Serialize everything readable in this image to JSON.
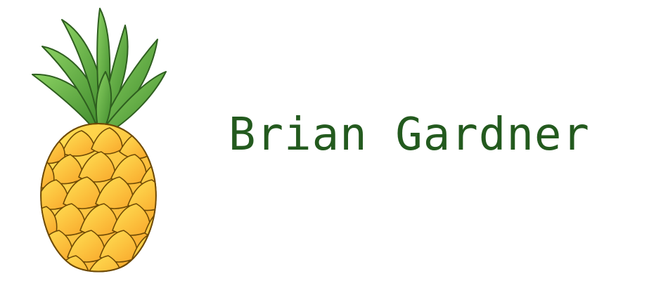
{
  "brand": {
    "name": "Brian Gardner",
    "text_color": "#235a1e",
    "logo_icon": "pineapple-icon"
  },
  "colors": {
    "leaf_light": "#8cd263",
    "leaf_dark": "#3f8a2c",
    "leaf_outline": "#2e5e1f",
    "fruit_light": "#ffe356",
    "fruit_dark": "#f9a72b",
    "fruit_outline": "#6e4a05"
  }
}
